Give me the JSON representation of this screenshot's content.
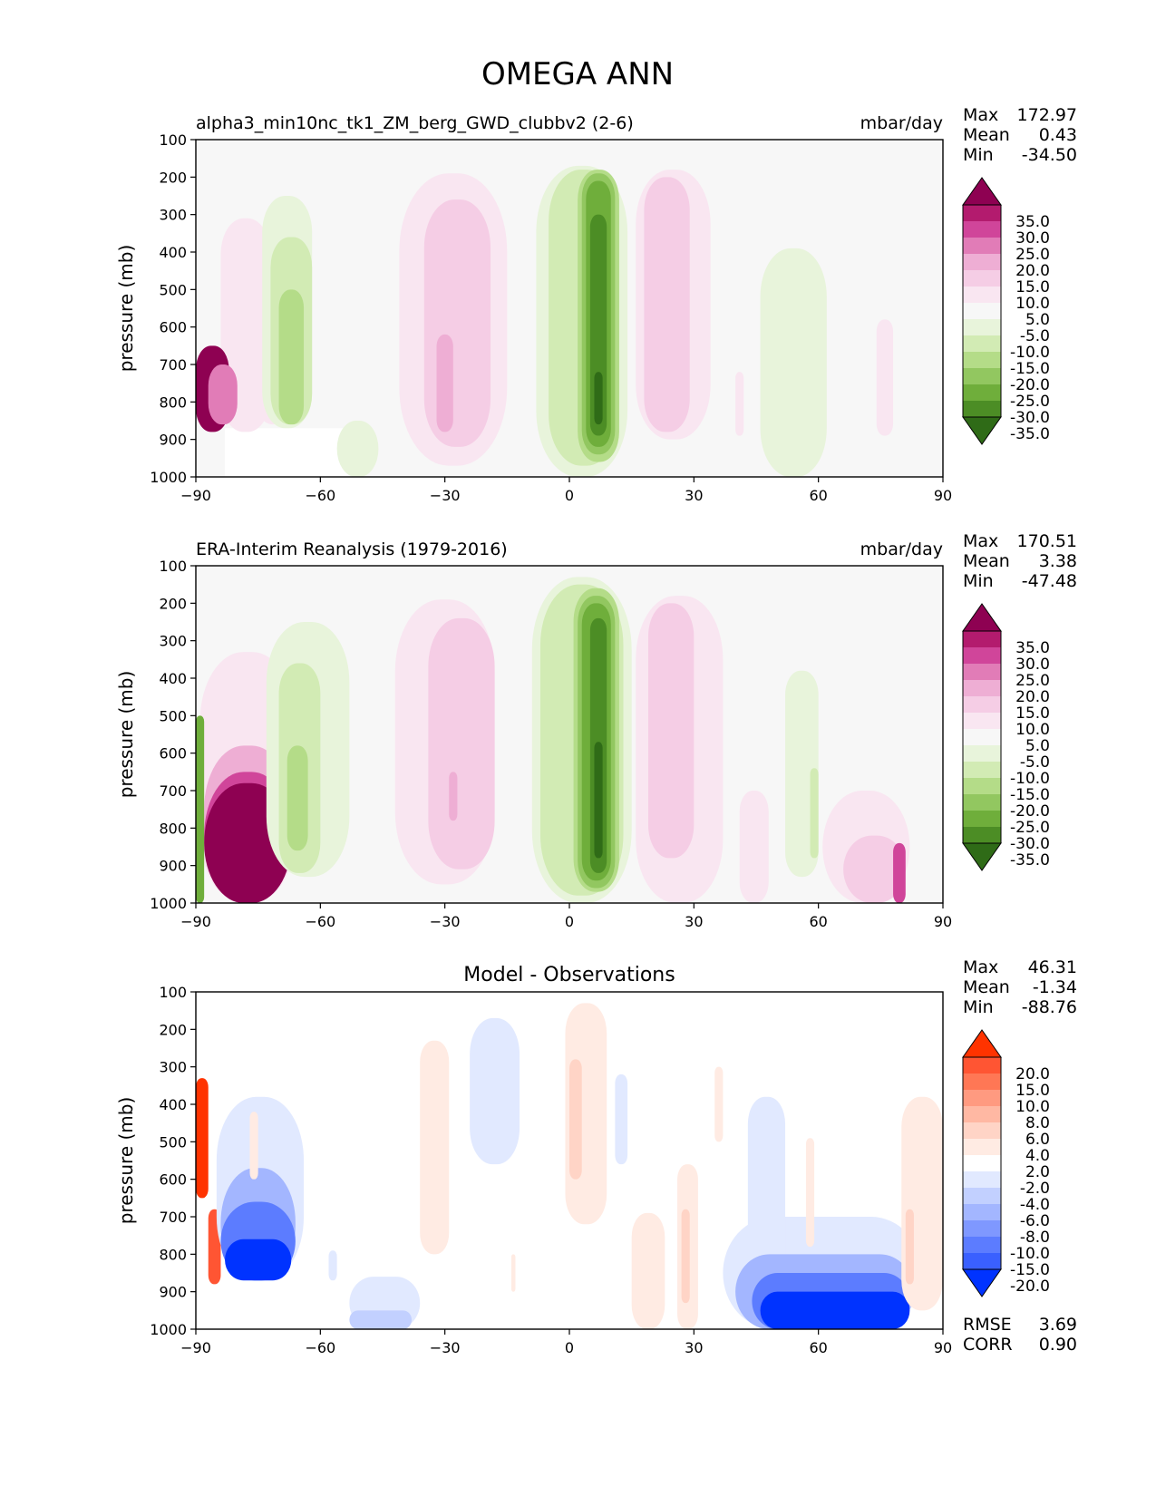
{
  "figure": {
    "title": "OMEGA ANN"
  },
  "chart_data": [
    {
      "type": "heatmap",
      "title_left": "alpha3_min10nc_tk1_ZM_berg_GWD_clubbv2 (2-6)",
      "title_right": "mbar/day",
      "xlabel": "",
      "ylabel": "pressure (mb)",
      "xlim": [
        -90,
        90
      ],
      "ylim": [
        1000,
        100
      ],
      "x_ticks": [
        "−90",
        "−60",
        "−30",
        "0",
        "30",
        "60",
        "90"
      ],
      "y_ticks": [
        "100",
        "200",
        "300",
        "400",
        "500",
        "600",
        "700",
        "800",
        "900",
        "1000"
      ],
      "stats": [
        {
          "label": "Max",
          "value": "172.97"
        },
        {
          "label": "Mean",
          "value": "0.43"
        },
        {
          "label": "Min",
          "value": "-34.50"
        }
      ],
      "colorbar_levels": [
        "35.0",
        "30.0",
        "25.0",
        "20.0",
        "15.0",
        "10.0",
        "5.0",
        "-5.0",
        "-10.0",
        "-15.0",
        "-20.0",
        "-25.0",
        "-30.0",
        "-35.0"
      ],
      "colorbar_colors": [
        "#8e0152",
        "#b31b6e",
        "#d0459a",
        "#e17cb7",
        "#eeaed4",
        "#f5cde5",
        "#f9e6f1",
        "#f7f7f7",
        "#e8f4db",
        "#d2ebb4",
        "#b4dc88",
        "#92c760",
        "#6fae3b",
        "#4c8d25",
        "#2f6b17"
      ],
      "features": [
        {
          "x0": -83,
          "x1": -53,
          "p0": 870,
          "p1": 1000,
          "level": "missing"
        },
        {
          "x0": -84,
          "x1": -72,
          "p0": 310,
          "p1": 880,
          "level": 5
        },
        {
          "x0": -90,
          "x1": -82,
          "p0": 650,
          "p1": 880,
          "level": 35
        },
        {
          "x0": -87,
          "x1": -80,
          "p0": 700,
          "p1": 860,
          "level": 20
        },
        {
          "x0": -76,
          "x1": -66,
          "p0": 380,
          "p1": 860,
          "level": 5
        },
        {
          "x0": -74,
          "x1": -62,
          "p0": 250,
          "p1": 870,
          "level": -5
        },
        {
          "x0": -72,
          "x1": -62,
          "p0": 360,
          "p1": 860,
          "level": -10
        },
        {
          "x0": -70,
          "x1": -64,
          "p0": 500,
          "p1": 860,
          "level": -15
        },
        {
          "x0": -56,
          "x1": -46,
          "p0": 850,
          "p1": 1000,
          "level": -5
        },
        {
          "x0": -41,
          "x1": -15,
          "p0": 190,
          "p1": 970,
          "level": 5
        },
        {
          "x0": -35,
          "x1": -19,
          "p0": 260,
          "p1": 920,
          "level": 10
        },
        {
          "x0": -32,
          "x1": -28,
          "p0": 620,
          "p1": 880,
          "level": 15
        },
        {
          "x0": -8,
          "x1": 14,
          "p0": 170,
          "p1": 1000,
          "level": -5
        },
        {
          "x0": -5,
          "x1": 12,
          "p0": 180,
          "p1": 970,
          "level": -10
        },
        {
          "x0": 2,
          "x1": 12,
          "p0": 180,
          "p1": 960,
          "level": -15
        },
        {
          "x0": 3,
          "x1": 11,
          "p0": 190,
          "p1": 940,
          "level": -20
        },
        {
          "x0": 4,
          "x1": 10,
          "p0": 210,
          "p1": 920,
          "level": -25
        },
        {
          "x0": 5,
          "x1": 9,
          "p0": 300,
          "p1": 890,
          "level": -30
        },
        {
          "x0": 6,
          "x1": 8,
          "p0": 720,
          "p1": 860,
          "level": -35
        },
        {
          "x0": 16,
          "x1": 34,
          "p0": 180,
          "p1": 900,
          "level": 5
        },
        {
          "x0": 18,
          "x1": 29,
          "p0": 200,
          "p1": 880,
          "level": 10
        },
        {
          "x0": 40,
          "x1": 42,
          "p0": 720,
          "p1": 890,
          "level": 5
        },
        {
          "x0": 46,
          "x1": 62,
          "p0": 390,
          "p1": 1000,
          "level": -5
        },
        {
          "x0": 74,
          "x1": 78,
          "p0": 580,
          "p1": 890,
          "level": 5
        }
      ]
    },
    {
      "type": "heatmap",
      "title_left": "ERA-Interim Reanalysis (1979-2016)",
      "title_right": "mbar/day",
      "xlabel": "",
      "ylabel": "pressure (mb)",
      "xlim": [
        -90,
        90
      ],
      "ylim": [
        1000,
        100
      ],
      "x_ticks": [
        "−90",
        "−60",
        "−30",
        "0",
        "30",
        "60",
        "90"
      ],
      "y_ticks": [
        "100",
        "200",
        "300",
        "400",
        "500",
        "600",
        "700",
        "800",
        "900",
        "1000"
      ],
      "stats": [
        {
          "label": "Max",
          "value": "170.51"
        },
        {
          "label": "Mean",
          "value": "3.38"
        },
        {
          "label": "Min",
          "value": "-47.48"
        }
      ],
      "colorbar_levels": [
        "35.0",
        "30.0",
        "25.0",
        "20.0",
        "15.0",
        "10.0",
        "5.0",
        "-5.0",
        "-10.0",
        "-15.0",
        "-20.0",
        "-25.0",
        "-30.0",
        "-35.0"
      ],
      "colorbar_colors": [
        "#8e0152",
        "#b31b6e",
        "#d0459a",
        "#e17cb7",
        "#eeaed4",
        "#f5cde5",
        "#f9e6f1",
        "#f7f7f7",
        "#e8f4db",
        "#d2ebb4",
        "#b4dc88",
        "#92c760",
        "#6fae3b",
        "#4c8d25",
        "#2f6b17"
      ],
      "features": [
        {
          "x0": -89,
          "x1": -66,
          "p0": 330,
          "p1": 1000,
          "level": 5
        },
        {
          "x0": -88,
          "x1": -67,
          "p0": 580,
          "p1": 1000,
          "level": 15
        },
        {
          "x0": -88,
          "x1": -67,
          "p0": 650,
          "p1": 1000,
          "level": 25
        },
        {
          "x0": -88,
          "x1": -67,
          "p0": 680,
          "p1": 1000,
          "level": 35
        },
        {
          "x0": -90,
          "x1": -88,
          "p0": 500,
          "p1": 1000,
          "level": -25
        },
        {
          "x0": -73,
          "x1": -53,
          "p0": 250,
          "p1": 930,
          "level": -5
        },
        {
          "x0": -70,
          "x1": -60,
          "p0": 360,
          "p1": 920,
          "level": -10
        },
        {
          "x0": -68,
          "x1": -63,
          "p0": 580,
          "p1": 860,
          "level": -15
        },
        {
          "x0": -42,
          "x1": -18,
          "p0": 190,
          "p1": 950,
          "level": 5
        },
        {
          "x0": -34,
          "x1": -18,
          "p0": 240,
          "p1": 910,
          "level": 10
        },
        {
          "x0": -29,
          "x1": -27,
          "p0": 650,
          "p1": 780,
          "level": 15
        },
        {
          "x0": -9,
          "x1": 15,
          "p0": 130,
          "p1": 1000,
          "level": -5
        },
        {
          "x0": -7,
          "x1": 13,
          "p0": 150,
          "p1": 980,
          "level": -10
        },
        {
          "x0": 1,
          "x1": 12,
          "p0": 160,
          "p1": 970,
          "level": -15
        },
        {
          "x0": 2,
          "x1": 11,
          "p0": 180,
          "p1": 960,
          "level": -20
        },
        {
          "x0": 3,
          "x1": 10,
          "p0": 200,
          "p1": 940,
          "level": -25
        },
        {
          "x0": 5,
          "x1": 9,
          "p0": 240,
          "p1": 920,
          "level": -30
        },
        {
          "x0": 6,
          "x1": 8,
          "p0": 570,
          "p1": 880,
          "level": -35
        },
        {
          "x0": 16,
          "x1": 37,
          "p0": 180,
          "p1": 1000,
          "level": 5
        },
        {
          "x0": 19,
          "x1": 30,
          "p0": 200,
          "p1": 880,
          "level": 10
        },
        {
          "x0": 41,
          "x1": 48,
          "p0": 700,
          "p1": 1000,
          "level": 5
        },
        {
          "x0": 52,
          "x1": 60,
          "p0": 380,
          "p1": 930,
          "level": -5
        },
        {
          "x0": 58,
          "x1": 60,
          "p0": 640,
          "p1": 880,
          "level": -10
        },
        {
          "x0": 61,
          "x1": 82,
          "p0": 700,
          "p1": 1000,
          "level": 5
        },
        {
          "x0": 66,
          "x1": 81,
          "p0": 820,
          "p1": 1000,
          "level": 10
        },
        {
          "x0": 78,
          "x1": 81,
          "p0": 840,
          "p1": 1000,
          "level": 25
        }
      ]
    },
    {
      "type": "heatmap",
      "title": "Model - Observations",
      "xlabel": "",
      "ylabel": "pressure (mb)",
      "xlim": [
        -90,
        90
      ],
      "ylim": [
        1000,
        100
      ],
      "x_ticks": [
        "−90",
        "−60",
        "−30",
        "0",
        "30",
        "60",
        "90"
      ],
      "y_ticks": [
        "100",
        "200",
        "300",
        "400",
        "500",
        "600",
        "700",
        "800",
        "900",
        "1000"
      ],
      "stats": [
        {
          "label": "Max",
          "value": "46.31"
        },
        {
          "label": "Mean",
          "value": "-1.34"
        },
        {
          "label": "Min",
          "value": "-88.76"
        }
      ],
      "stats_bottom": [
        {
          "label": "RMSE",
          "value": "3.69"
        },
        {
          "label": "CORR",
          "value": "0.90"
        }
      ],
      "colorbar_levels": [
        "20.0",
        "15.0",
        "10.0",
        "8.0",
        "6.0",
        "4.0",
        "2.0",
        "-2.0",
        "-4.0",
        "-6.0",
        "-8.0",
        "-10.0",
        "-15.0",
        "-20.0"
      ],
      "colorbar_colors": [
        "#ff3300",
        "#ff5533",
        "#ff7755",
        "#ff9a80",
        "#ffb8a3",
        "#ffd4c6",
        "#ffebe3",
        "#ffffff",
        "#e1e9ff",
        "#c2d0ff",
        "#a3b6ff",
        "#7f98ff",
        "#5c7cff",
        "#3a60ff",
        "#0033ff"
      ],
      "features": [
        {
          "x0": -90,
          "x1": -87,
          "p0": 330,
          "p1": 650,
          "level": 20
        },
        {
          "x0": -87,
          "x1": -84,
          "p0": 680,
          "p1": 880,
          "level": 15
        },
        {
          "x0": -85,
          "x1": -64,
          "p0": 380,
          "p1": 870,
          "level": -2
        },
        {
          "x0": -84,
          "x1": -66,
          "p0": 570,
          "p1": 870,
          "level": -6
        },
        {
          "x0": -84,
          "x1": -66,
          "p0": 660,
          "p1": 870,
          "level": -10
        },
        {
          "x0": -83,
          "x1": -67,
          "p0": 760,
          "p1": 870,
          "level": -20
        },
        {
          "x0": -77,
          "x1": -75,
          "p0": 420,
          "p1": 600,
          "level": 2
        },
        {
          "x0": -58,
          "x1": -56,
          "p0": 790,
          "p1": 870,
          "level": -2
        },
        {
          "x0": -53,
          "x1": -36,
          "p0": 860,
          "p1": 1000,
          "level": -2
        },
        {
          "x0": -53,
          "x1": -38,
          "p0": 950,
          "p1": 1000,
          "level": -4
        },
        {
          "x0": -36,
          "x1": -29,
          "p0": 230,
          "p1": 800,
          "level": 2
        },
        {
          "x0": -24,
          "x1": -12,
          "p0": 170,
          "p1": 560,
          "level": -2
        },
        {
          "x0": -14,
          "x1": -13,
          "p0": 800,
          "p1": 900,
          "level": 2
        },
        {
          "x0": -1,
          "x1": 9,
          "p0": 130,
          "p1": 720,
          "level": 2
        },
        {
          "x0": 0,
          "x1": 3,
          "p0": 280,
          "p1": 600,
          "level": 4
        },
        {
          "x0": 11,
          "x1": 14,
          "p0": 320,
          "p1": 560,
          "level": -2
        },
        {
          "x0": 15,
          "x1": 23,
          "p0": 690,
          "p1": 1000,
          "level": 2
        },
        {
          "x0": 26,
          "x1": 31,
          "p0": 560,
          "p1": 1000,
          "level": 2
        },
        {
          "x0": 27,
          "x1": 29,
          "p0": 680,
          "p1": 930,
          "level": 4
        },
        {
          "x0": 35,
          "x1": 37,
          "p0": 300,
          "p1": 500,
          "level": 2
        },
        {
          "x0": 37,
          "x1": 85,
          "p0": 700,
          "p1": 1000,
          "level": -2
        },
        {
          "x0": 43,
          "x1": 52,
          "p0": 380,
          "p1": 1000,
          "level": -2
        },
        {
          "x0": 40,
          "x1": 83,
          "p0": 800,
          "p1": 1000,
          "level": -6
        },
        {
          "x0": 44,
          "x1": 82,
          "p0": 850,
          "p1": 1000,
          "level": -10
        },
        {
          "x0": 46,
          "x1": 82,
          "p0": 900,
          "p1": 1000,
          "level": -20
        },
        {
          "x0": 57,
          "x1": 59,
          "p0": 490,
          "p1": 780,
          "level": 2
        },
        {
          "x0": 80,
          "x1": 90,
          "p0": 380,
          "p1": 950,
          "level": 2
        },
        {
          "x0": 81,
          "x1": 83,
          "p0": 680,
          "p1": 880,
          "level": 4
        }
      ]
    }
  ]
}
